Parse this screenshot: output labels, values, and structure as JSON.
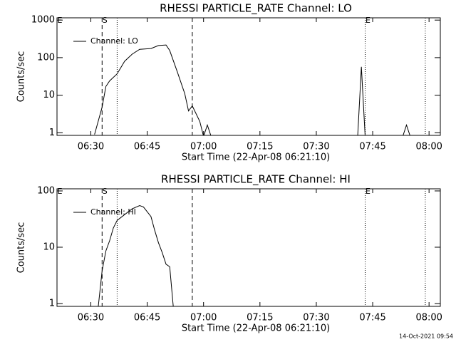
{
  "chart_data": [
    {
      "type": "line",
      "title": "RHESSI PARTICLE_RATE Channel: LO",
      "xlabel": "Start Time (22-Apr-08 06:21:10)",
      "ylabel": "Counts/sec",
      "x": [
        "06:31",
        "06:33",
        "06:34",
        "06:35",
        "06:37",
        "06:39",
        "06:41",
        "06:43",
        "06:46",
        "06:48",
        "06:50",
        "06:51",
        "06:53",
        "06:55",
        "06:56",
        "06:57",
        "06:59",
        "07:00",
        "07:01",
        "07:02",
        "07:20",
        "07:41",
        "07:42",
        "07:43",
        "07:50",
        "07:53",
        "07:54",
        "07:55"
      ],
      "series": [
        {
          "name": "Channel: LO",
          "color": "#000000",
          "values": [
            0.9,
            4.8,
            17,
            24,
            37,
            80,
            124,
            167,
            175,
            210,
            218,
            155,
            42,
            11,
            3.8,
            5.2,
            2,
            0.8,
            1.6,
            0.8,
            null,
            0.8,
            57,
            0.8,
            null,
            0.8,
            1.6,
            0.8
          ]
        }
      ],
      "xlim": [
        "06:21",
        "08:03"
      ],
      "xticks": [
        "06:30",
        "06:45",
        "07:00",
        "07:15",
        "07:30",
        "07:45",
        "08:00"
      ],
      "ylim": [
        0.85,
        1150
      ],
      "yticks": [
        1,
        10,
        100,
        1000
      ],
      "log_y": true,
      "legend": "upper left",
      "vlines": [
        {
          "x": "06:33",
          "style": "dashed"
        },
        {
          "x": "06:37",
          "style": "dotted"
        },
        {
          "x": "06:57",
          "style": "dashed"
        },
        {
          "x": "07:43",
          "style": "dotted"
        },
        {
          "x": "07:59",
          "style": "dotted"
        }
      ],
      "annotations": [
        {
          "text": "E",
          "x": "06:21"
        },
        {
          "text": "S",
          "x": "06:33"
        },
        {
          "text": "E",
          "x": "07:43"
        }
      ]
    },
    {
      "type": "line",
      "title": "RHESSI PARTICLE_RATE Channel: HI",
      "xlabel": "Start Time (22-Apr-08 06:21:10)",
      "ylabel": "Counts/sec",
      "x": [
        "06:32",
        "06:33",
        "06:34",
        "06:35",
        "06:36",
        "06:37",
        "06:39",
        "06:41",
        "06:43",
        "06:44",
        "06:46",
        "06:47",
        "06:48",
        "06:49",
        "06:50",
        "06:51",
        "06:52"
      ],
      "series": [
        {
          "name": "Channel: HI",
          "color": "#000000",
          "values": [
            0.9,
            3.8,
            8.6,
            13,
            22,
            30,
            38,
            48,
            55,
            52,
            35,
            20,
            12,
            8,
            5,
            4.5,
            0.8
          ]
        }
      ],
      "xlim": [
        "06:21",
        "08:03"
      ],
      "xticks": [
        "06:30",
        "06:45",
        "07:00",
        "07:15",
        "07:30",
        "07:45",
        "08:00"
      ],
      "ylim": [
        0.89,
        109
      ],
      "yticks": [
        1,
        10,
        100
      ],
      "log_y": true,
      "legend": "upper left",
      "vlines": [
        {
          "x": "06:33",
          "style": "dashed"
        },
        {
          "x": "06:37",
          "style": "dotted"
        },
        {
          "x": "06:57",
          "style": "dashed"
        },
        {
          "x": "07:43",
          "style": "dotted"
        },
        {
          "x": "07:59",
          "style": "dotted"
        }
      ],
      "annotations": [
        {
          "text": "E",
          "x": "06:21"
        },
        {
          "text": "S",
          "x": "06:33"
        },
        {
          "text": "E",
          "x": "07:43"
        }
      ]
    }
  ],
  "footer": "14-Oct-2021 09:54"
}
